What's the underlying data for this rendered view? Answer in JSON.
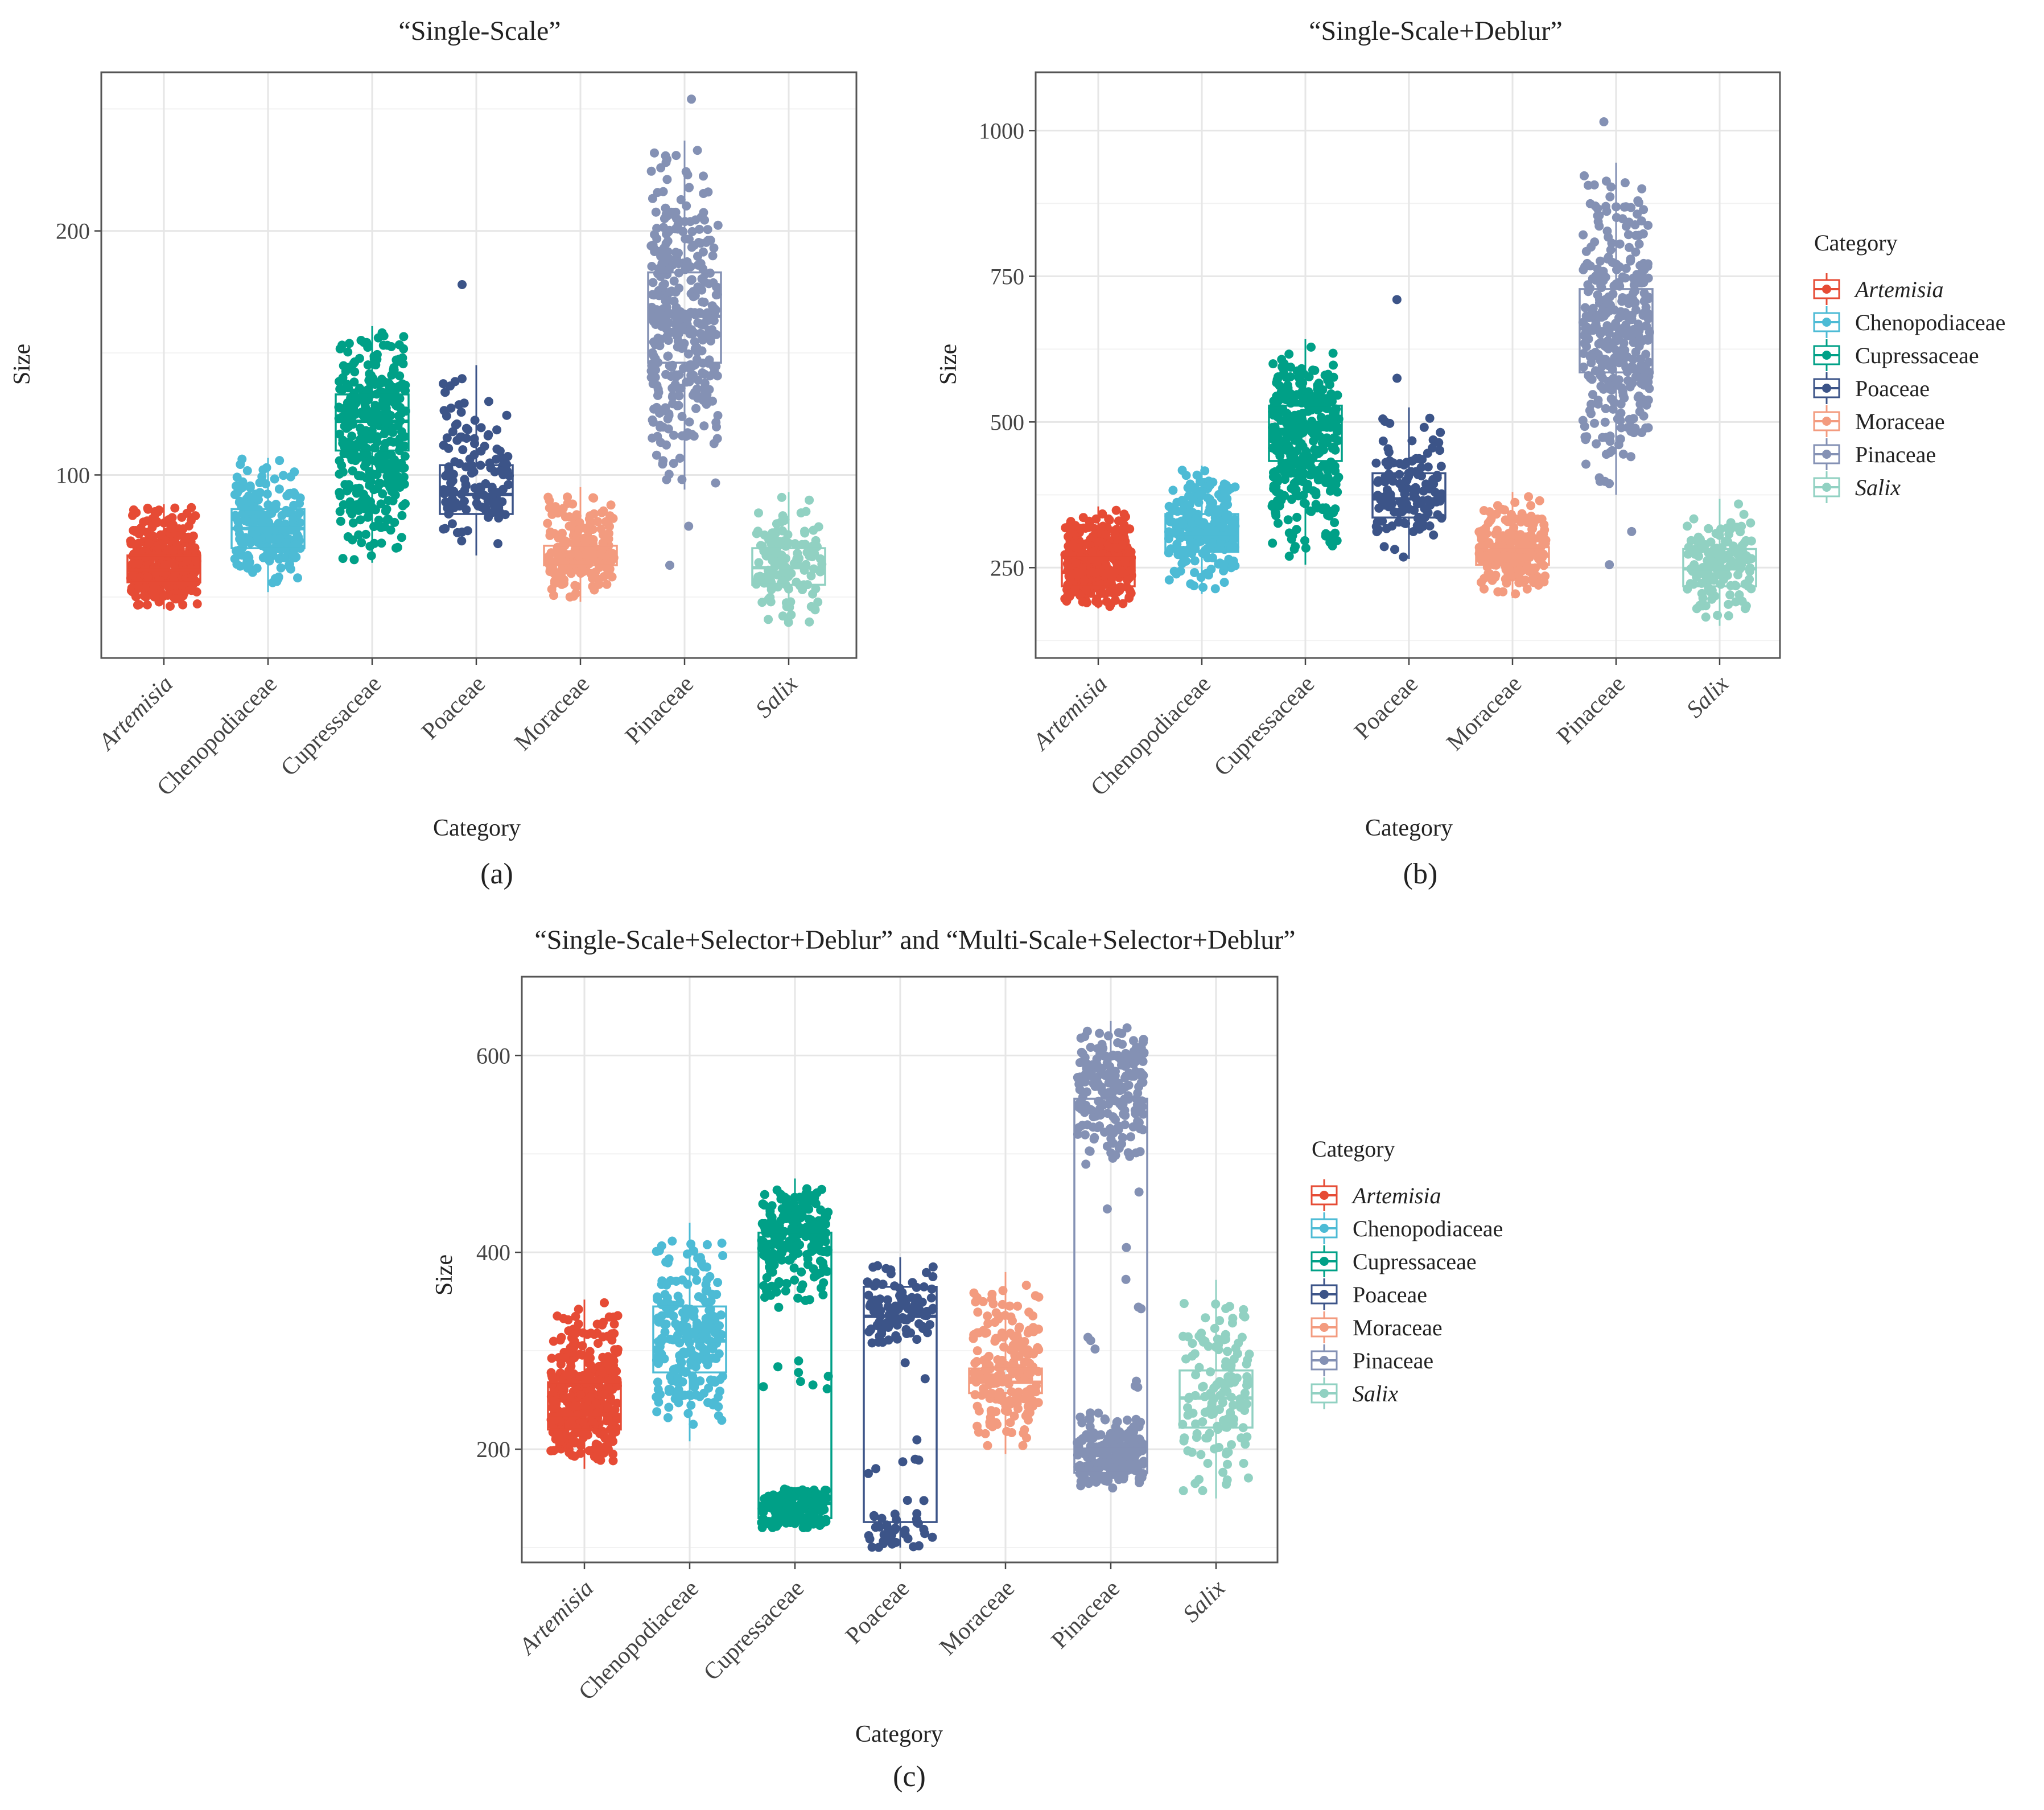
{
  "categories": [
    "Artemisia",
    "Chenopodiaceae",
    "Cupressaceae",
    "Poaceae",
    "Moraceae",
    "Pinaceae",
    "Salix"
  ],
  "italic_categories": [
    "Artemisia",
    "Salix"
  ],
  "colors": {
    "Artemisia": "#e64b35",
    "Chenopodiaceae": "#4dbbd5",
    "Cupressaceae": "#00a087",
    "Poaceae": "#3c5488",
    "Moraceae": "#f39b7f",
    "Pinaceae": "#8491b4",
    "Salix": "#91d1c2"
  },
  "chart_data": [
    {
      "panel": "a",
      "panel_label": "(a)",
      "type": "boxplot-jitter",
      "title": "“Single-Scale”",
      "xlabel": "Category",
      "ylabel": "Size",
      "ylim": [
        25,
        265
      ],
      "yticks": [
        100,
        200
      ],
      "grid": true,
      "legend": null,
      "series": [
        {
          "name": "Artemisia",
          "q1": 56,
          "median": 61,
          "q3": 67,
          "whisker_low": 45,
          "whisker_high": 88,
          "outliers": []
        },
        {
          "name": "Chenopodiaceae",
          "q1": 70,
          "median": 78,
          "q3": 86,
          "whisker_low": 52,
          "whisker_high": 107,
          "outliers": []
        },
        {
          "name": "Cupressaceae",
          "q1": 110,
          "median": 122,
          "q3": 133,
          "whisker_low": 64,
          "whisker_high": 161,
          "outliers": []
        },
        {
          "name": "Poaceae",
          "q1": 84,
          "median": 92,
          "q3": 104,
          "whisker_low": 67,
          "whisker_high": 145,
          "outliers": [
            178
          ]
        },
        {
          "name": "Moraceae",
          "q1": 63,
          "median": 67,
          "q3": 71,
          "whisker_low": 48,
          "whisker_high": 95,
          "outliers": []
        },
        {
          "name": "Pinaceae",
          "q1": 146,
          "median": 165,
          "q3": 183,
          "whisker_low": 94,
          "whisker_high": 237,
          "outliers": [
            63,
            79,
            254
          ]
        },
        {
          "name": "Salix",
          "q1": 55,
          "median": 62,
          "q3": 70,
          "whisker_low": 38,
          "whisker_high": 93,
          "outliers": []
        }
      ]
    },
    {
      "panel": "b",
      "panel_label": "(b)",
      "type": "boxplot-jitter",
      "title": "“Single-Scale+Deblur”",
      "xlabel": "Category",
      "ylabel": "Size",
      "ylim": [
        95,
        1100
      ],
      "yticks": [
        250,
        500,
        750,
        1000
      ],
      "grid": true,
      "legend": "right",
      "series": [
        {
          "name": "Artemisia",
          "q1": 218,
          "median": 242,
          "q3": 268,
          "whisker_low": 180,
          "whisker_high": 355,
          "outliers": []
        },
        {
          "name": "Chenopodiaceae",
          "q1": 277,
          "median": 308,
          "q3": 342,
          "whisker_low": 205,
          "whisker_high": 425,
          "outliers": []
        },
        {
          "name": "Cupressaceae",
          "q1": 433,
          "median": 487,
          "q3": 528,
          "whisker_low": 255,
          "whisker_high": 642,
          "outliers": []
        },
        {
          "name": "Poaceae",
          "q1": 336,
          "median": 368,
          "q3": 412,
          "whisker_low": 265,
          "whisker_high": 525,
          "outliers": [
            575,
            710
          ]
        },
        {
          "name": "Moraceae",
          "q1": 255,
          "median": 270,
          "q3": 285,
          "whisker_low": 198,
          "whisker_high": 380,
          "outliers": []
        },
        {
          "name": "Pinaceae",
          "q1": 585,
          "median": 660,
          "q3": 728,
          "whisker_low": 375,
          "whisker_high": 945,
          "outliers": [
            255,
            312,
            1015
          ]
        },
        {
          "name": "Salix",
          "q1": 218,
          "median": 248,
          "q3": 282,
          "whisker_low": 150,
          "whisker_high": 368,
          "outliers": []
        }
      ]
    },
    {
      "panel": "c",
      "panel_label": "(c)",
      "type": "boxplot-jitter",
      "title": "“Single-Scale+Selector+Deblur” and “Multi-Scale+Selector+Deblur”",
      "xlabel": "Category",
      "ylabel": "Size",
      "ylim": [
        85,
        680
      ],
      "yticks": [
        200,
        400,
        600
      ],
      "grid": true,
      "legend": "right",
      "series": [
        {
          "name": "Artemisia",
          "q1": 220,
          "median": 235,
          "q3": 268,
          "whisker_low": 180,
          "whisker_high": 352,
          "outliers": []
        },
        {
          "name": "Chenopodiaceae",
          "q1": 278,
          "median": 310,
          "q3": 345,
          "whisker_low": 208,
          "whisker_high": 430,
          "outliers": []
        },
        {
          "name": "Cupressaceae",
          "q1": 130,
          "median": 145,
          "q3": 420,
          "whisker_low": 120,
          "whisker_high": 475,
          "outliers": []
        },
        {
          "name": "Poaceae",
          "q1": 126,
          "median": 335,
          "q3": 365,
          "whisker_low": 100,
          "whisker_high": 395,
          "outliers": []
        },
        {
          "name": "Moraceae",
          "q1": 257,
          "median": 268,
          "q3": 282,
          "whisker_low": 195,
          "whisker_high": 380,
          "outliers": []
        },
        {
          "name": "Pinaceae",
          "q1": 176,
          "median": 200,
          "q3": 556,
          "whisker_low": 158,
          "whisker_high": 635,
          "outliers": []
        },
        {
          "name": "Salix",
          "q1": 222,
          "median": 252,
          "q3": 280,
          "whisker_low": 150,
          "whisker_high": 372,
          "outliers": []
        }
      ]
    }
  ],
  "legend": {
    "title": "Category",
    "items": [
      "Artemisia",
      "Chenopodiaceae",
      "Cupressaceae",
      "Poaceae",
      "Moraceae",
      "Pinaceae",
      "Salix"
    ]
  }
}
